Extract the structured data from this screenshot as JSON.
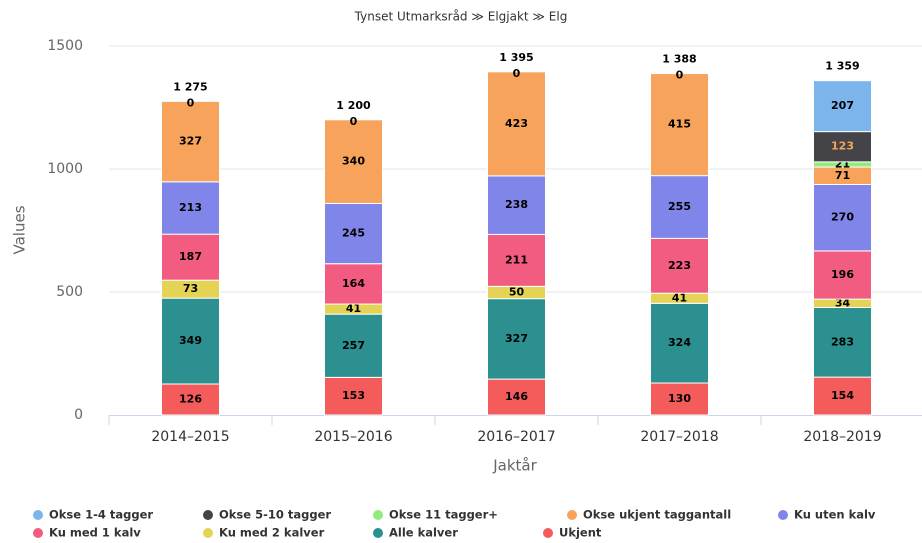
{
  "chart_data": {
    "type": "stacked_bar",
    "title": "Tynset Utmarksråd ≫ Elgjakt ≫ Elg",
    "y_label": "Values",
    "x_label": "Jaktår",
    "categories": [
      "2014–2015",
      "2015–2016",
      "2016–2017",
      "2017–2018",
      "2018–2019"
    ],
    "ylim": [
      0,
      1500
    ],
    "yticks": [
      0,
      500,
      1000,
      1500
    ],
    "grid": true,
    "legend": "bottom",
    "series": [
      {
        "name": "Okse 1-4 tagger",
        "color": "#7cb5ec",
        "values": [
          0,
          0,
          0,
          0,
          207
        ]
      },
      {
        "name": "Okse 5-10 tagger",
        "color": "#434348",
        "values": [
          null,
          null,
          null,
          null,
          123
        ]
      },
      {
        "name": "Okse 11 tagger+",
        "color": "#90ed7d",
        "values": [
          null,
          null,
          null,
          null,
          21
        ]
      },
      {
        "name": "Okse ukjent taggantall",
        "color": "#f7a35c",
        "values": [
          327,
          340,
          423,
          415,
          71
        ]
      },
      {
        "name": "Ku uten kalv",
        "color": "#8085e9",
        "values": [
          213,
          245,
          238,
          255,
          270
        ]
      },
      {
        "name": "Ku med 1 kalv",
        "color": "#f15c80",
        "values": [
          187,
          164,
          211,
          223,
          196
        ]
      },
      {
        "name": "Ku med 2 kalver",
        "color": "#e4d354",
        "values": [
          73,
          41,
          50,
          41,
          34
        ]
      },
      {
        "name": "Alle kalver",
        "color": "#2b908f",
        "values": [
          349,
          257,
          327,
          324,
          283
        ]
      },
      {
        "name": "Ukjent",
        "color": "#f45b5b",
        "values": [
          126,
          153,
          146,
          130,
          154
        ]
      }
    ],
    "totals": [
      1275,
      1200,
      1395,
      1388,
      1359
    ],
    "total_labels": [
      "1 275",
      "1 200",
      "1 395",
      "1 388",
      "1 359"
    ]
  }
}
